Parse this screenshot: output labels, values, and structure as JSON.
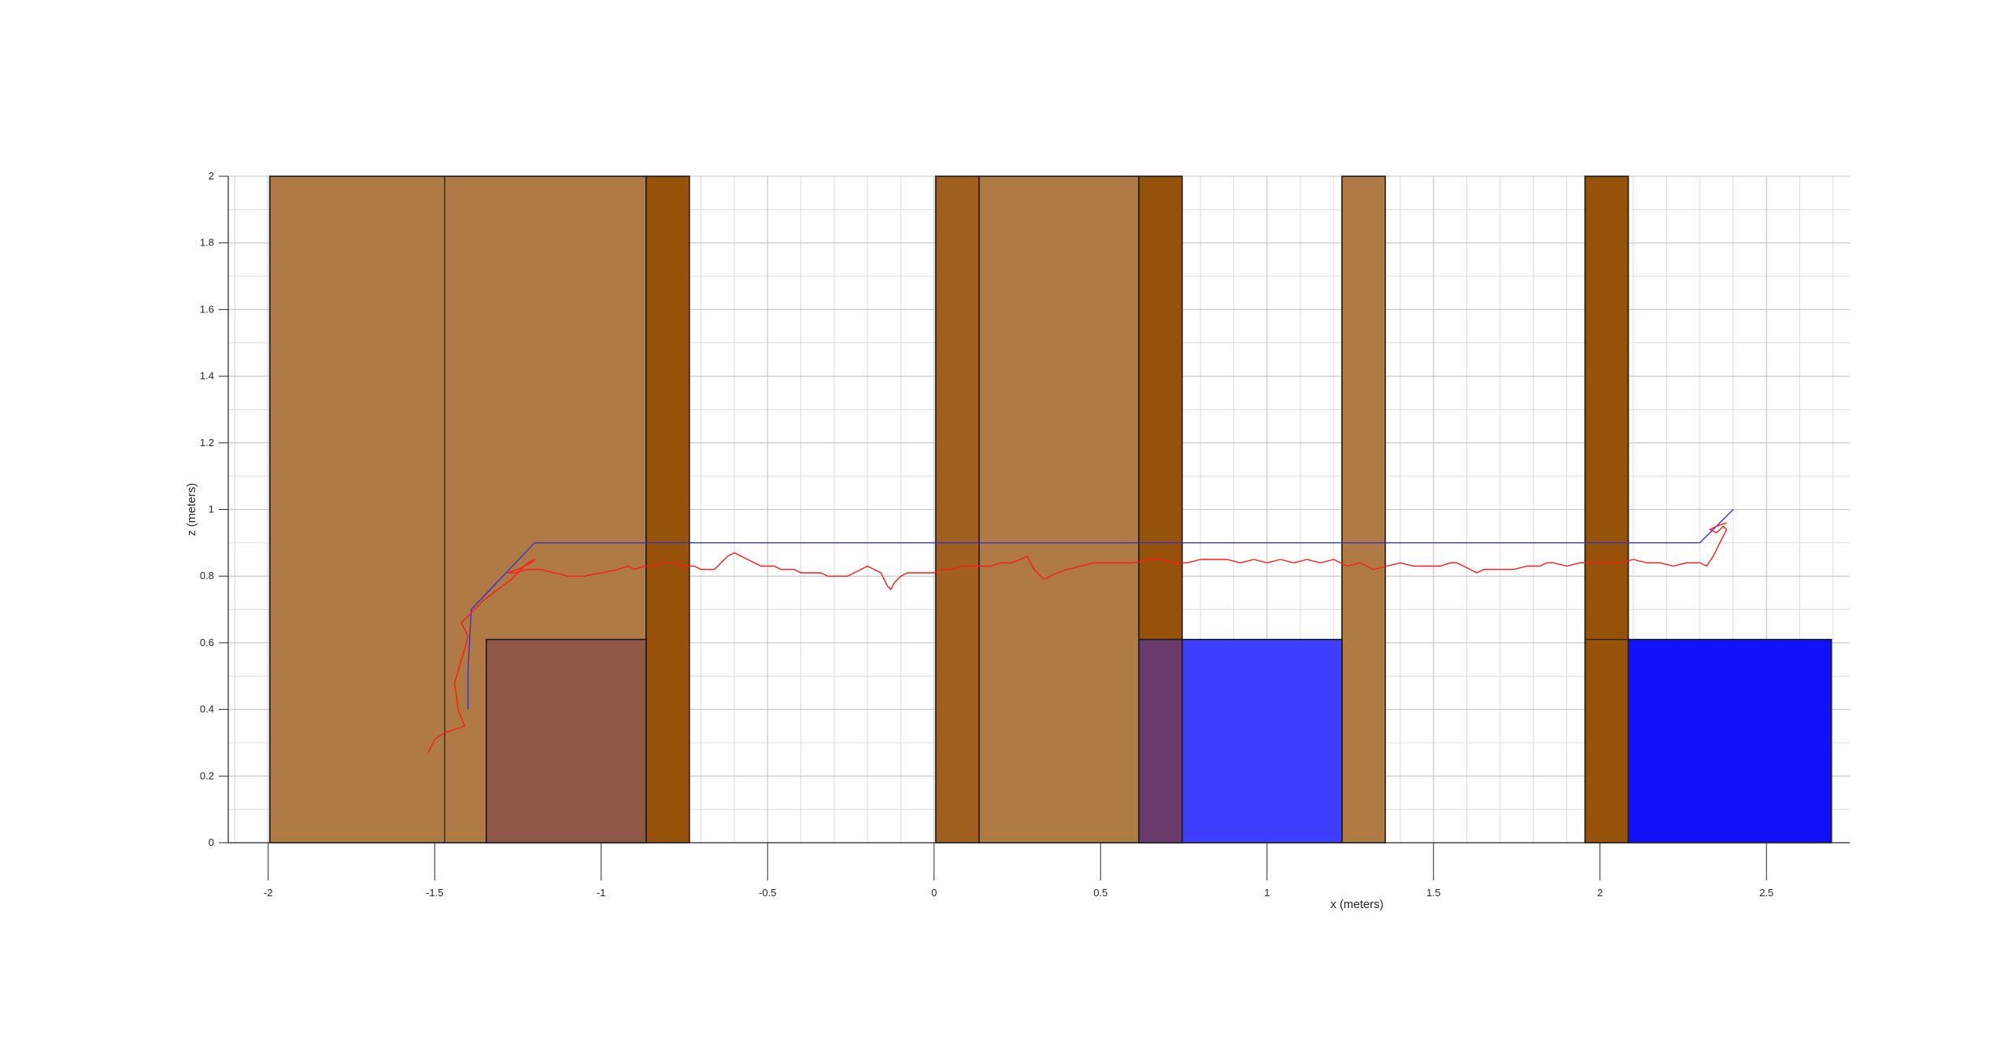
{
  "chart_data": {
    "type": "line",
    "title": "",
    "xlabel": "x (meters)",
    "ylabel": "z (meters)",
    "xlim": [
      -2.12,
      2.75
    ],
    "ylim": [
      0,
      2
    ],
    "xticks": [
      -2,
      -1.5,
      -1,
      -0.5,
      0,
      0.5,
      1,
      1.5,
      2,
      2.5
    ],
    "xtick_labels": [
      "-2",
      "-1.5",
      "-1",
      "-0.5",
      "0",
      "0.5",
      "1",
      "1.5",
      "2",
      "2.5"
    ],
    "yticks": [
      0,
      0.2,
      0.4,
      0.6,
      0.8,
      1,
      1.2,
      1.4,
      1.6,
      1.8,
      2
    ],
    "ytick_labels": [
      "0",
      "0.2",
      "0.4",
      "0.6",
      "0.8",
      "1",
      "1.2",
      "1.4",
      "1.6",
      "1.8",
      "2"
    ],
    "grid": true,
    "minor_grid_x_step": 0.1,
    "minor_grid_y_step": 0.1,
    "obstacles": [
      {
        "kind": "box",
        "x0": -1.995,
        "x1": -0.865,
        "z0": 0,
        "z1": 2,
        "color": "#b07a44"
      },
      {
        "kind": "box",
        "x0": -0.865,
        "x1": -0.735,
        "z0": 0,
        "z1": 2,
        "color": "#965208"
      },
      {
        "kind": "box",
        "x0": 0.005,
        "x1": 0.135,
        "z0": 0,
        "z1": 2,
        "color": "#a0611f"
      },
      {
        "kind": "box",
        "x0": 0.135,
        "x1": 0.615,
        "z0": 0,
        "z1": 2,
        "color": "#b07a44"
      },
      {
        "kind": "box",
        "x0": 0.615,
        "x1": 0.745,
        "z0": 0,
        "z1": 2,
        "color": "#965208"
      },
      {
        "kind": "box",
        "x0": 1.225,
        "x1": 1.355,
        "z0": 0,
        "z1": 2,
        "color": "#b07a44"
      },
      {
        "kind": "box",
        "x0": 1.955,
        "x1": 2.085,
        "z0": 0,
        "z1": 2,
        "color": "#965208"
      },
      {
        "kind": "box",
        "x0": -1.345,
        "x1": -0.865,
        "z0": 0,
        "z1": 0.61,
        "color": "#8f5846"
      },
      {
        "kind": "box",
        "x0": 0.615,
        "x1": 0.745,
        "z0": 0,
        "z1": 0.61,
        "color": "#693b6c"
      },
      {
        "kind": "box",
        "x0": 0.745,
        "x1": 1.225,
        "z0": 0,
        "z1": 0.61,
        "color": "#3e3efe"
      },
      {
        "kind": "box",
        "x0": 2.085,
        "x1": 2.695,
        "z0": 0,
        "z1": 0.61,
        "color": "#1111fc"
      }
    ],
    "dividers": [
      {
        "x": -1.47,
        "z0": 0,
        "z1": 2
      },
      {
        "x": 0.135,
        "z0": 0,
        "z1": 2
      },
      {
        "x": 1.955,
        "z0": 0.61,
        "z1": 0.61,
        "x1": 2.085
      }
    ],
    "series": [
      {
        "color": "#3333cc",
        "x": [
          -1.4,
          -1.4,
          -1.39,
          -1.2,
          2.3,
          2.4
        ],
        "z": [
          0.4,
          0.52,
          0.7,
          0.9,
          0.9,
          1.0
        ]
      },
      {
        "color": "#ff1a1a",
        "x": [
          -1.52,
          -1.5,
          -1.47,
          -1.44,
          -1.41,
          -1.43,
          -1.44,
          -1.42,
          -1.41,
          -1.4,
          -1.42,
          -1.4,
          -1.38,
          -1.35,
          -1.31,
          -1.27,
          -1.24,
          -1.22,
          -1.2,
          -1.21,
          -1.25,
          -1.28,
          -1.26,
          -1.22,
          -1.18,
          -1.14,
          -1.1,
          -1.05,
          -1.0,
          -0.95,
          -0.92,
          -0.9,
          -0.87,
          -0.84,
          -0.82,
          -0.8,
          -0.78,
          -0.76,
          -0.74,
          -0.72,
          -0.7,
          -0.66,
          -0.64,
          -0.62,
          -0.6,
          -0.58,
          -0.56,
          -0.54,
          -0.52,
          -0.5,
          -0.48,
          -0.46,
          -0.44,
          -0.42,
          -0.4,
          -0.38,
          -0.36,
          -0.34,
          -0.32,
          -0.3,
          -0.28,
          -0.26,
          -0.24,
          -0.22,
          -0.2,
          -0.18,
          -0.16,
          -0.15,
          -0.14,
          -0.13,
          -0.12,
          -0.1,
          -0.08,
          -0.06,
          -0.04,
          -0.02,
          0.0,
          0.02,
          0.05,
          0.08,
          0.11,
          0.14,
          0.17,
          0.2,
          0.23,
          0.26,
          0.28,
          0.3,
          0.32,
          0.33,
          0.35,
          0.37,
          0.4,
          0.44,
          0.48,
          0.52,
          0.56,
          0.6,
          0.64,
          0.68,
          0.72,
          0.76,
          0.8,
          0.84,
          0.86,
          0.88,
          0.92,
          0.96,
          1.0,
          1.04,
          1.08,
          1.12,
          1.16,
          1.2,
          1.24,
          1.28,
          1.32,
          1.36,
          1.4,
          1.44,
          1.48,
          1.52,
          1.55,
          1.57,
          1.59,
          1.61,
          1.63,
          1.65,
          1.67,
          1.7,
          1.74,
          1.78,
          1.82,
          1.84,
          1.86,
          1.9,
          1.94,
          1.98,
          2.02,
          2.06,
          2.1,
          2.14,
          2.18,
          2.22,
          2.26,
          2.3,
          2.32,
          2.34,
          2.36,
          2.38,
          2.37,
          2.35,
          2.33,
          2.35,
          2.38
        ],
        "z": [
          0.27,
          0.31,
          0.33,
          0.34,
          0.35,
          0.4,
          0.48,
          0.55,
          0.58,
          0.62,
          0.66,
          0.68,
          0.7,
          0.73,
          0.76,
          0.79,
          0.82,
          0.84,
          0.85,
          0.84,
          0.82,
          0.81,
          0.81,
          0.82,
          0.82,
          0.81,
          0.8,
          0.8,
          0.81,
          0.82,
          0.83,
          0.82,
          0.83,
          0.83,
          0.84,
          0.84,
          0.84,
          0.83,
          0.83,
          0.83,
          0.82,
          0.82,
          0.84,
          0.86,
          0.87,
          0.86,
          0.85,
          0.84,
          0.83,
          0.83,
          0.83,
          0.82,
          0.82,
          0.82,
          0.81,
          0.81,
          0.81,
          0.81,
          0.8,
          0.8,
          0.8,
          0.8,
          0.81,
          0.82,
          0.83,
          0.82,
          0.81,
          0.79,
          0.77,
          0.76,
          0.78,
          0.8,
          0.81,
          0.81,
          0.81,
          0.81,
          0.81,
          0.82,
          0.82,
          0.83,
          0.83,
          0.83,
          0.83,
          0.84,
          0.84,
          0.85,
          0.86,
          0.82,
          0.8,
          0.79,
          0.8,
          0.81,
          0.82,
          0.83,
          0.84,
          0.84,
          0.84,
          0.84,
          0.85,
          0.85,
          0.84,
          0.84,
          0.85,
          0.85,
          0.85,
          0.85,
          0.84,
          0.85,
          0.84,
          0.85,
          0.84,
          0.85,
          0.84,
          0.85,
          0.83,
          0.84,
          0.82,
          0.83,
          0.84,
          0.83,
          0.83,
          0.83,
          0.84,
          0.84,
          0.83,
          0.82,
          0.81,
          0.82,
          0.82,
          0.82,
          0.82,
          0.83,
          0.83,
          0.84,
          0.84,
          0.83,
          0.84,
          0.84,
          0.84,
          0.84,
          0.85,
          0.84,
          0.84,
          0.83,
          0.84,
          0.84,
          0.83,
          0.86,
          0.9,
          0.94,
          0.95,
          0.93,
          0.94,
          0.95,
          0.96
        ]
      }
    ]
  }
}
